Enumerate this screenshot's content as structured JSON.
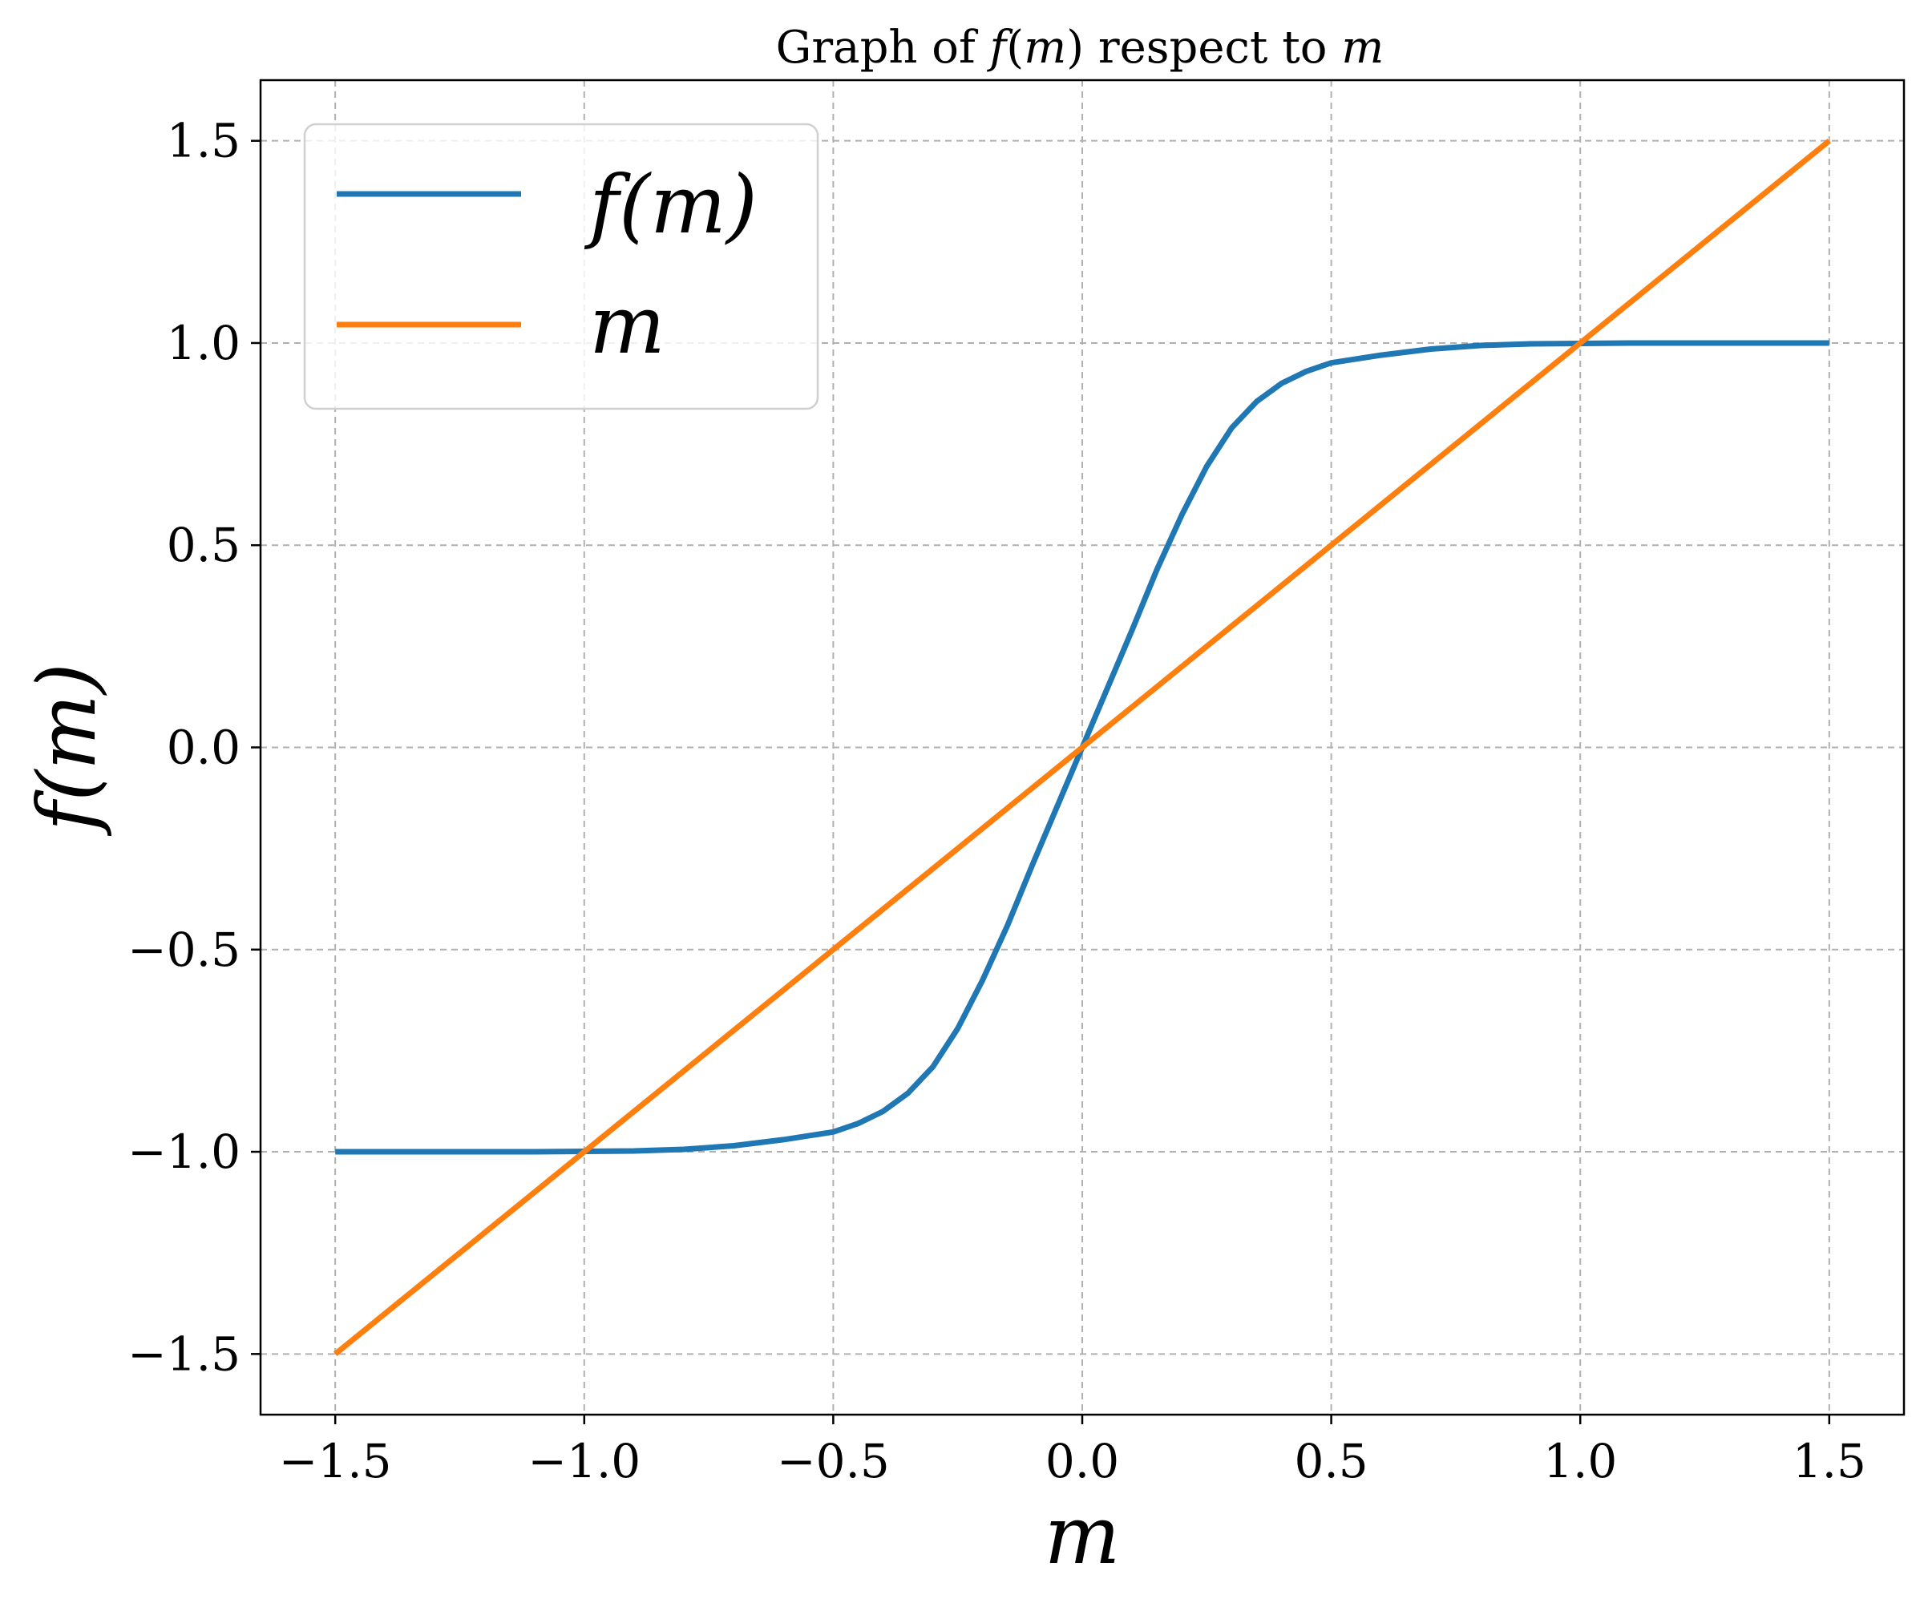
{
  "chart_data": {
    "type": "line",
    "title_parts": [
      {
        "text": "Graph of ",
        "italic": false
      },
      {
        "text": "f",
        "italic": true
      },
      {
        "text": "(",
        "italic": false
      },
      {
        "text": "m",
        "italic": true
      },
      {
        "text": ")",
        "italic": false
      },
      {
        "text": " respect to ",
        "italic": false
      },
      {
        "text": "m",
        "italic": true
      }
    ],
    "xlabel": "m",
    "ylabel": "f(m)",
    "xlim": [
      -1.65,
      1.65
    ],
    "ylim": [
      -1.65,
      1.65
    ],
    "xticks": [
      -1.5,
      -1.0,
      -0.5,
      0.0,
      0.5,
      1.0,
      1.5
    ],
    "yticks": [
      -1.5,
      -1.0,
      -0.5,
      0.0,
      0.5,
      1.0,
      1.5
    ],
    "xtick_labels": [
      "−1.5",
      "−1.0",
      "−0.5",
      "0.0",
      "0.5",
      "1.0",
      "1.5"
    ],
    "ytick_labels": [
      "−1.5",
      "−1.0",
      "−0.5",
      "0.0",
      "0.5",
      "1.0",
      "1.5"
    ],
    "grid": true,
    "legend_position": "top-left",
    "series": [
      {
        "name": "f(m)",
        "color": "#1f77b4",
        "x": [
          -1.5,
          -1.4,
          -1.3,
          -1.2,
          -1.1,
          -1.0,
          -0.9,
          -0.8,
          -0.7,
          -0.6,
          -0.5,
          -0.45,
          -0.4,
          -0.35,
          -0.3,
          -0.25,
          -0.2,
          -0.15,
          -0.1,
          -0.05,
          0.0,
          0.05,
          0.1,
          0.15,
          0.2,
          0.25,
          0.3,
          0.35,
          0.4,
          0.45,
          0.5,
          0.6,
          0.7,
          0.8,
          0.9,
          1.0,
          1.1,
          1.2,
          1.3,
          1.4,
          1.5
        ],
        "y": [
          -1.0,
          -1.0,
          -1.0,
          -1.0,
          -1.0,
          -0.999,
          -0.998,
          -0.994,
          -0.985,
          -0.97,
          -0.951,
          -0.93,
          -0.9,
          -0.855,
          -0.79,
          -0.695,
          -0.575,
          -0.44,
          -0.29,
          -0.145,
          0.0,
          0.145,
          0.29,
          0.44,
          0.575,
          0.695,
          0.79,
          0.855,
          0.9,
          0.93,
          0.951,
          0.97,
          0.985,
          0.994,
          0.998,
          0.999,
          1.0,
          1.0,
          1.0,
          1.0,
          1.0
        ]
      },
      {
        "name": "m",
        "color": "#ff7f0e",
        "x": [
          -1.5,
          1.5
        ],
        "y": [
          -1.5,
          1.5
        ]
      }
    ]
  }
}
